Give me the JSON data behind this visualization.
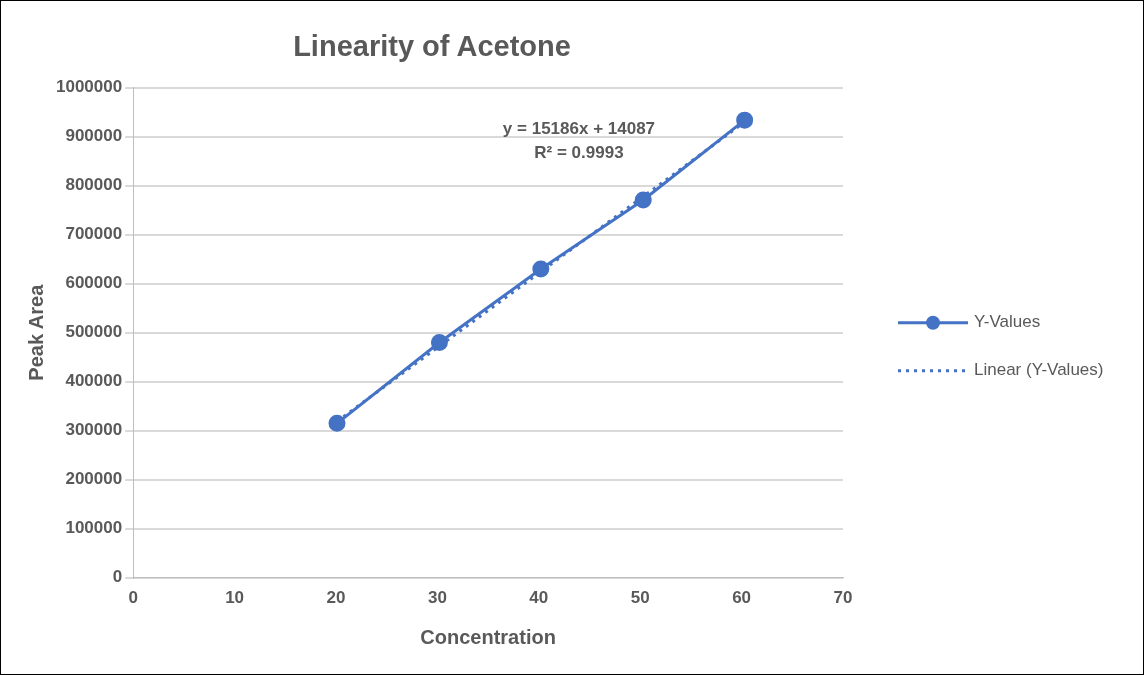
{
  "chart_data": {
    "type": "line",
    "title": "Linearity of Acetone",
    "xlabel": "Concentration",
    "ylabel": "Peak Area",
    "xlim": [
      0,
      70
    ],
    "xticks": [
      0,
      10,
      20,
      30,
      40,
      50,
      60,
      70
    ],
    "ylim": [
      0,
      1000000
    ],
    "yticks": [
      0,
      100000,
      200000,
      300000,
      400000,
      500000,
      600000,
      700000,
      800000,
      900000,
      1000000
    ],
    "grid": "y",
    "legend": "right",
    "marker": "circle",
    "series": [
      {
        "name": "Y-Values",
        "color": "#4472c4",
        "x": [
          20.1,
          30.2,
          40.2,
          50.3,
          60.3
        ],
        "values": [
          315000,
          480000,
          630000,
          771000,
          934000
        ],
        "line_style": "solid"
      },
      {
        "name": "Linear (Y-Values)",
        "color": "#4472c4",
        "x": [
          20.1,
          60.3
        ],
        "values": [
          319000,
          930000
        ],
        "marker": "none",
        "line_style": "dotted"
      }
    ],
    "annotations": [
      "y = 15186x + 14087",
      "R² = 0.9993"
    ]
  }
}
